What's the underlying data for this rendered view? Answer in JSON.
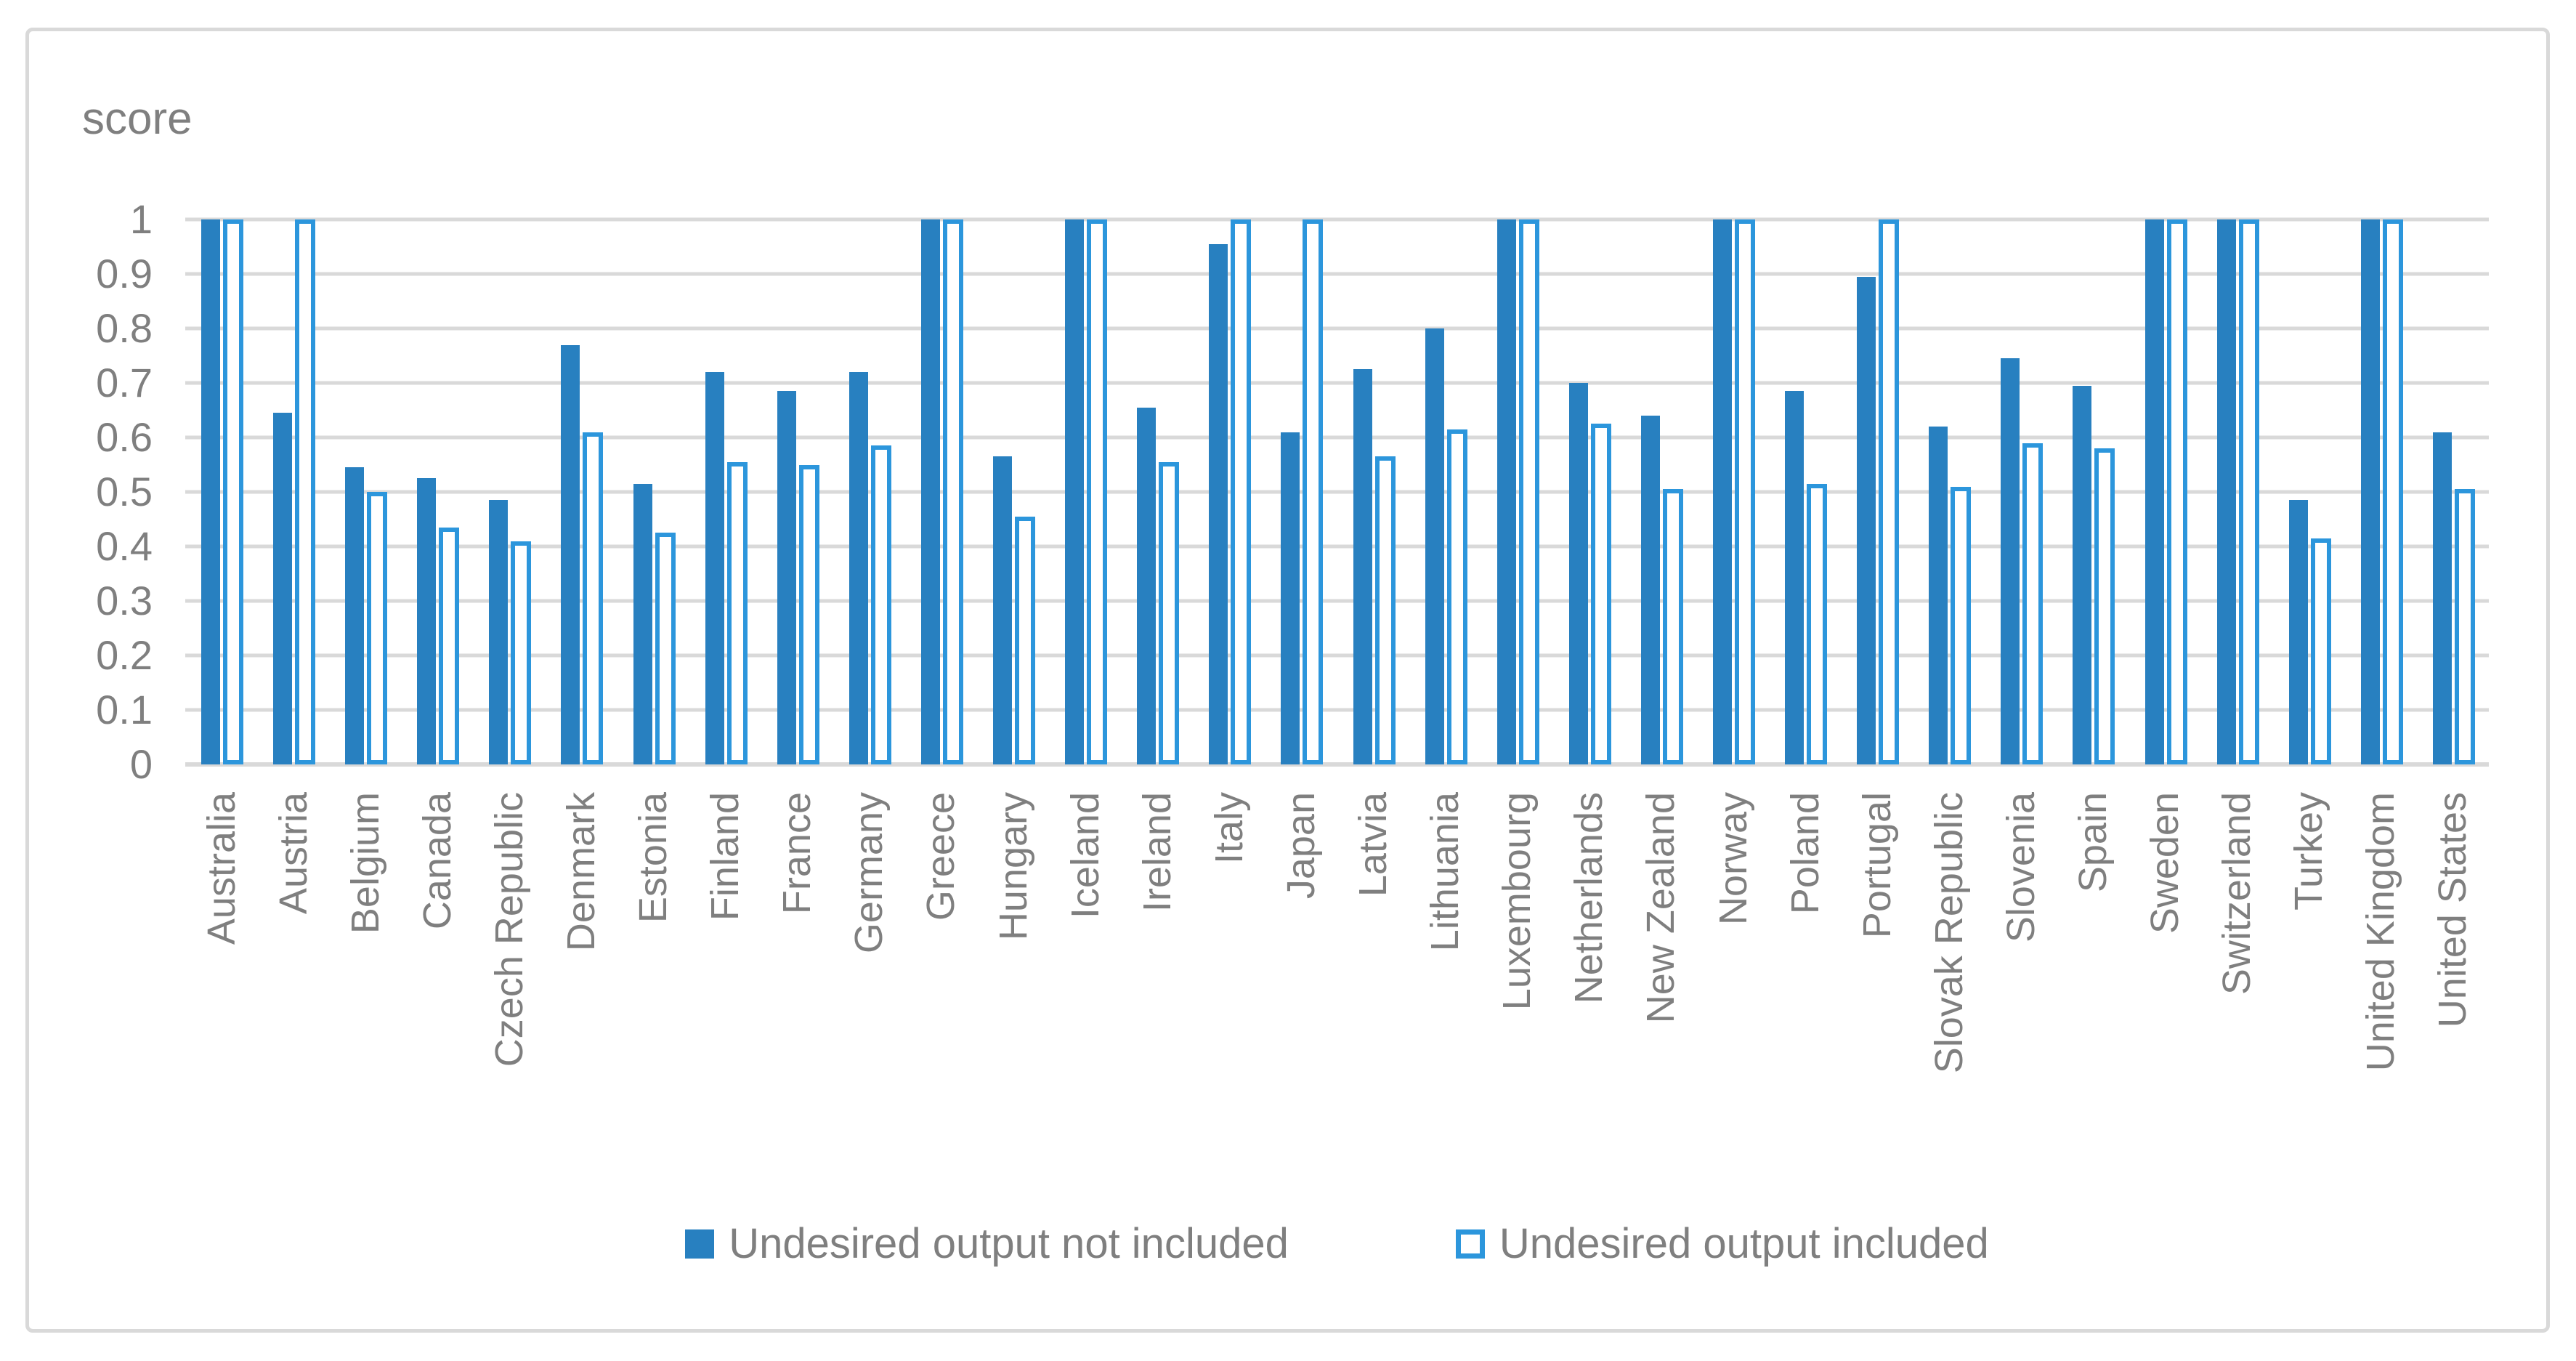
{
  "chart_data": {
    "type": "bar",
    "title": "score",
    "categories": [
      "Australia",
      "Austria",
      "Belgium",
      "Canada",
      "Czech Republic",
      "Denmark",
      "Estonia",
      "Finland",
      "France",
      "Germany",
      "Greece",
      "Hungary",
      "Iceland",
      "Ireland",
      "Italy",
      "Japan",
      "Latvia",
      "Lithuania",
      "Luxembourg",
      "Netherlands",
      "New Zealand",
      "Norway",
      "Poland",
      "Portugal",
      "Slovak Republic",
      "Slovenia",
      "Spain",
      "Sweden",
      "Switzerland",
      "Turkey",
      "United Kingdom",
      "United States"
    ],
    "series": [
      {
        "name": "Undesired output not included",
        "style": "solid",
        "color": "#2880C0",
        "values": [
          1,
          0.645,
          0.545,
          0.525,
          0.485,
          0.77,
          0.515,
          0.72,
          0.685,
          0.72,
          1,
          0.565,
          1,
          0.655,
          0.955,
          0.61,
          0.725,
          0.8,
          1,
          0.7,
          0.64,
          1,
          0.685,
          0.895,
          0.62,
          0.745,
          0.695,
          1,
          1,
          0.485,
          1,
          0.61
        ]
      },
      {
        "name": "Undesired output included",
        "style": "outlined",
        "color": "#2C96DC",
        "values": [
          1,
          1,
          0.5,
          0.435,
          0.41,
          0.61,
          0.425,
          0.555,
          0.55,
          0.585,
          1,
          0.455,
          1,
          0.555,
          1,
          1,
          0.565,
          0.615,
          1,
          0.625,
          0.505,
          1,
          0.515,
          1,
          0.51,
          0.59,
          0.58,
          1,
          1,
          0.415,
          1,
          0.505
        ]
      }
    ],
    "ylabel": "",
    "xlabel": "",
    "ylim": [
      0,
      1
    ],
    "yticks": [
      "1",
      "0.9",
      "0.8",
      "0.7",
      "0.6",
      "0.5",
      "0.4",
      "0.3",
      "0.2",
      "0.1",
      "0"
    ],
    "grid": "horizontal",
    "legend_position": "bottom",
    "gridline_color": "#D9D9D9",
    "text_color": "#7F7F7F",
    "background_color": "#FFFFFF"
  }
}
